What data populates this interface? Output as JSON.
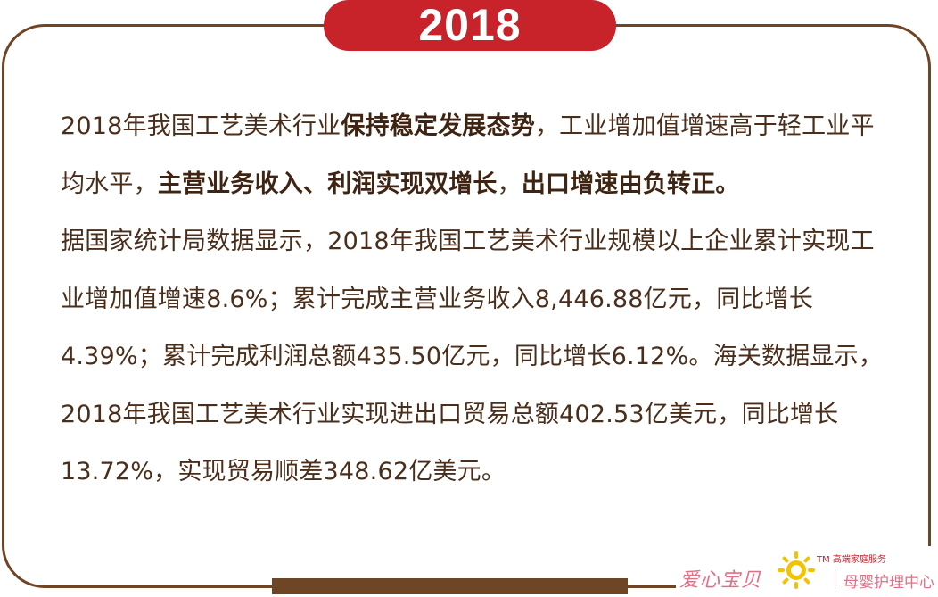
{
  "header": {
    "year": "2018"
  },
  "paragraph": {
    "seg1": "2018年我国工艺美术行业",
    "bold1": "保持稳定发展态势",
    "seg2": "，工业增加值增速高于轻工业平均水平，",
    "bold2": "主营业务收入、利润实现双增长",
    "seg3": "，",
    "bold3": "出口增速由负转正。",
    "seg4": "据国家统计局数据显示，2018年我国工艺美术行业规模以上企业累计实现工业增加值增速8.6%；累计完成主营业务收入8,446.88亿元，同比增长4.39%；累计完成利润总额435.50亿元，同比增长6.12%。海关数据显示，2018年我国工艺美术行业实现进出口贸易总额402.53亿美元，同比增长13.72%，实现贸易顺差348.62亿美元。"
  },
  "watermark": {
    "brand_name": "爱心宝贝",
    "tagline": "TM 高端家庭服务",
    "subtitle": "母婴护理中心",
    "colors": {
      "pink": "#e36f86",
      "gold": "#f2c300",
      "red": "#c8222b"
    },
    "icon": "sun-logo-icon"
  },
  "colors": {
    "frame": "#6e4525",
    "tab": "#c8222b",
    "text": "#4a2e1b"
  }
}
